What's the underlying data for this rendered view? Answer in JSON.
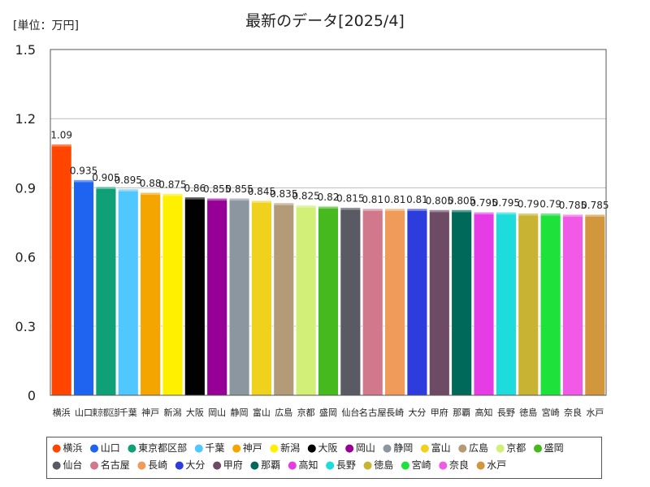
{
  "chart_data": {
    "type": "bar",
    "title": "最新のデータ[2025/4]",
    "unit_label": "[単位：万円]",
    "ylim": [
      0,
      1.5
    ],
    "yticks": [
      "0",
      "0.3",
      "0.6",
      "0.9",
      "1.2",
      "1.5"
    ],
    "ytick_values": [
      0,
      0.3,
      0.6,
      0.9,
      1.2,
      1.5
    ],
    "grid": true,
    "legend_position": "bottom",
    "categories": [
      "横浜",
      "山口",
      "東京都区部",
      "千葉",
      "神戸",
      "新潟",
      "大阪",
      "岡山",
      "静岡",
      "富山",
      "広島",
      "京都",
      "盛岡",
      "仙台",
      "名古屋",
      "長崎",
      "大分",
      "甲府",
      "那覇",
      "高知",
      "長野",
      "徳島",
      "宮崎",
      "奈良",
      "水戸"
    ],
    "x_labels": [
      "横浜",
      "山口",
      "東京都区部",
      "千葉",
      "神戸",
      "新潟",
      "大阪",
      "岡山",
      "静岡",
      "富山",
      "広島",
      "京都",
      "盛岡",
      "仙台",
      "名古屋",
      "長崎",
      "大分",
      "甲府",
      "那覇",
      "高知",
      "長野",
      "徳島",
      "宮崎",
      "奈良",
      "水戸"
    ],
    "values": [
      1.09,
      0.935,
      0.905,
      0.895,
      0.88,
      0.875,
      0.86,
      0.855,
      0.855,
      0.845,
      0.835,
      0.825,
      0.82,
      0.815,
      0.81,
      0.81,
      0.81,
      0.805,
      0.805,
      0.795,
      0.795,
      0.79,
      0.79,
      0.785,
      0.785
    ],
    "data_labels": [
      "1.09",
      "0.935",
      "0.905",
      "0.895",
      "0.88",
      "0.875",
      "0.86",
      "0.855",
      "0.855",
      "0.845",
      "0.835",
      "0.825",
      "0.82",
      "0.815",
      "0.81",
      "0.81",
      "0.81",
      "0.805",
      "0.805",
      "0.795",
      "0.795",
      "0.79",
      "0.79",
      "0.785",
      "0.785"
    ],
    "colors": [
      "#ff4500",
      "#1e64f0",
      "#0fa078",
      "#50c8ff",
      "#f5a500",
      "#fff000",
      "#000000",
      "#960096",
      "#8c96a0",
      "#f0d21e",
      "#b49b78",
      "#d2f078",
      "#46b91e",
      "#5a5a64",
      "#d2788c",
      "#f09b5a",
      "#2d3cdc",
      "#6e4b64",
      "#00695a",
      "#e63ce6",
      "#1edcdc",
      "#c8b432",
      "#1ee13c",
      "#f05ae6",
      "#d2963c"
    ]
  }
}
